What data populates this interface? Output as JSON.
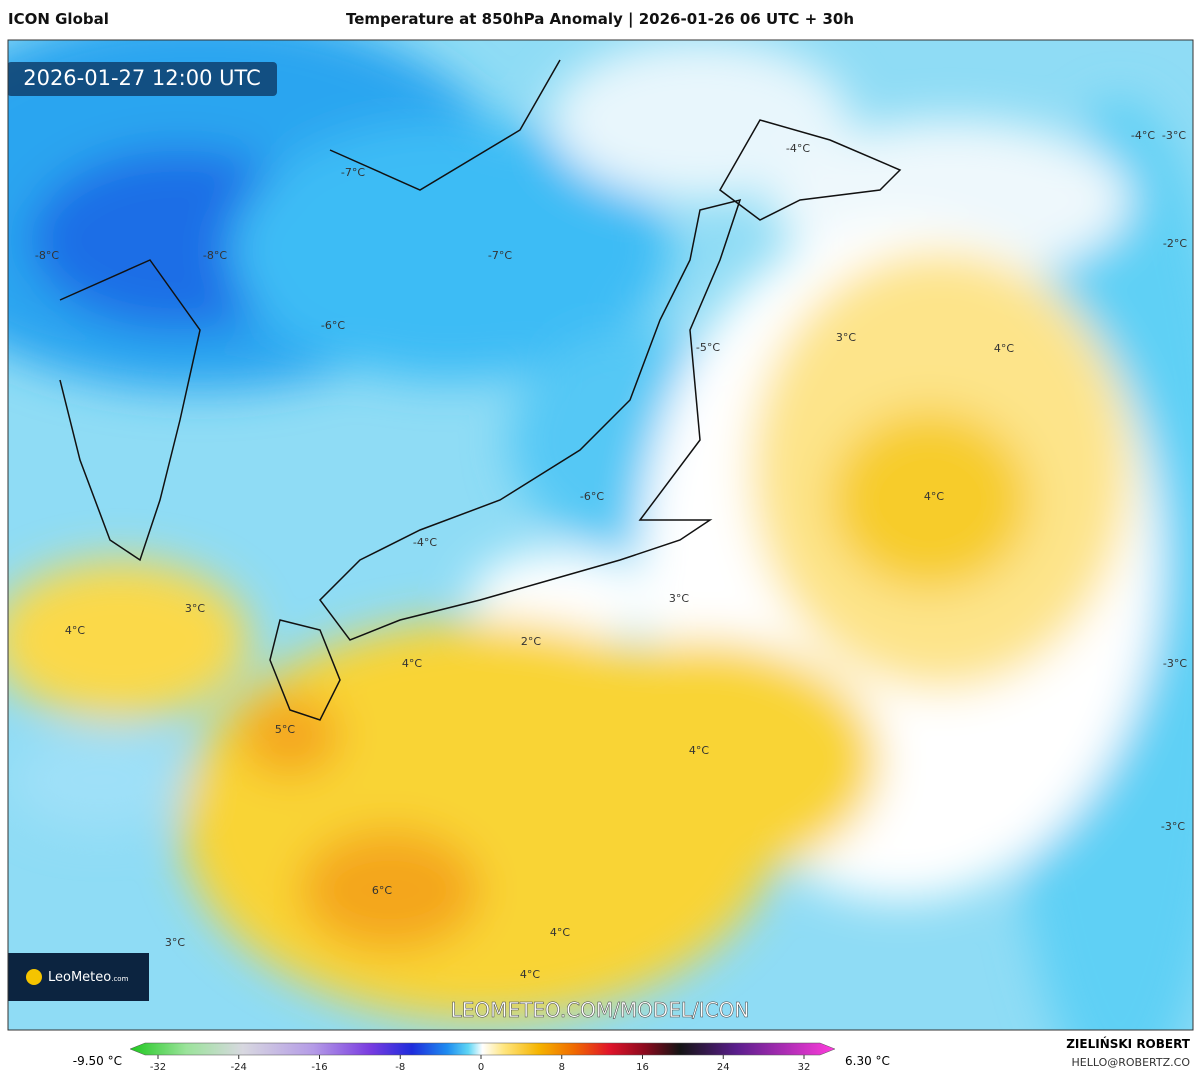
{
  "header": {
    "model": "ICON Global",
    "title": "Temperature at 850hPa Anomaly | 2026-01-26 06 UTC + 30h"
  },
  "map": {
    "valid_time": "2026-01-27 12:00 UTC",
    "labels": [
      "-4°C",
      "-4°C",
      "-3°C",
      "-7°C",
      "-8°C",
      "-8°C",
      "-7°C",
      "-2°C",
      "-6°C",
      "3°C",
      "-5°C",
      "4°C",
      "-6°C",
      "4°C",
      "-4°C",
      "3°C",
      "3°C",
      "4°C",
      "2°C",
      "4°C",
      "-3°C",
      "5°C",
      "4°C",
      "-3°C",
      "6°C",
      "4°C",
      "3°C",
      "4°C"
    ],
    "logo": {
      "name": "LeoMeteo",
      "suffix": ".com"
    },
    "watermark": "LEOMETEO.COM/MODEL/ICON"
  },
  "colorbar": {
    "min_label": "-9.50 °C",
    "max_label": "6.30 °C",
    "ticks": [
      -32,
      -24,
      -16,
      -8,
      0,
      8,
      16,
      24,
      32
    ]
  },
  "footer": {
    "author": "ZIELIŃSKI ROBERT",
    "email": "HELLO@ROBERTZ.CO"
  }
}
